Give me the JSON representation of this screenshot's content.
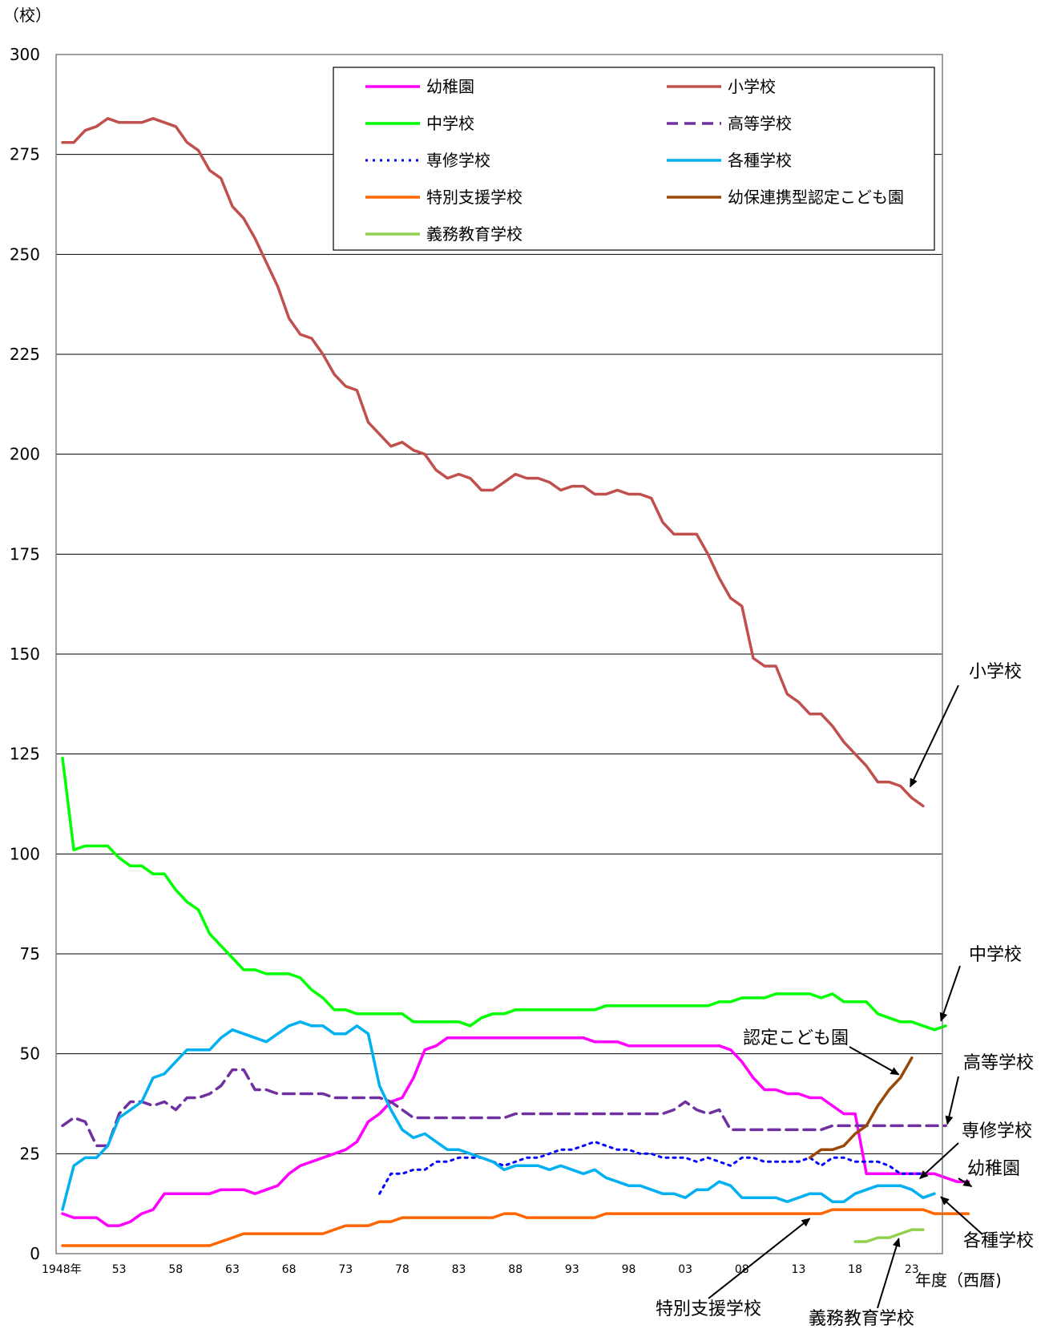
{
  "chart_data": {
    "type": "line",
    "y_unit_label": "（校）",
    "x_axis_label": "年度（西暦)",
    "ylim": [
      0,
      300
    ],
    "y_ticks": [
      0,
      25,
      50,
      75,
      100,
      125,
      150,
      175,
      200,
      225,
      250,
      275,
      300
    ],
    "x_range": [
      1948,
      2024
    ],
    "x_ticks": [
      {
        "year": 1948,
        "label": "1948年"
      },
      {
        "year": 1953,
        "label": "53"
      },
      {
        "year": 1958,
        "label": "58"
      },
      {
        "year": 1963,
        "label": "63"
      },
      {
        "year": 1968,
        "label": "68"
      },
      {
        "year": 1973,
        "label": "73"
      },
      {
        "year": 1978,
        "label": "78"
      },
      {
        "year": 1983,
        "label": "83"
      },
      {
        "year": 1988,
        "label": "88"
      },
      {
        "year": 1993,
        "label": "93"
      },
      {
        "year": 1998,
        "label": "98"
      },
      {
        "year": 2003,
        "label": "03"
      },
      {
        "year": 2008,
        "label": "08"
      },
      {
        "year": 2013,
        "label": "13"
      },
      {
        "year": 2018,
        "label": "18"
      },
      {
        "year": 2023,
        "label": "23"
      }
    ],
    "grid": "horizontal",
    "legend_position": "top-right",
    "series": [
      {
        "name": "幼稚園",
        "color": "#ff00ff",
        "style": "solid",
        "start": 1948,
        "values": [
          10,
          9,
          9,
          9,
          7,
          7,
          8,
          10,
          11,
          15,
          15,
          15,
          15,
          15,
          16,
          16,
          16,
          15,
          16,
          17,
          20,
          22,
          23,
          24,
          25,
          26,
          28,
          33,
          35,
          38,
          39,
          44,
          51,
          52,
          54,
          54,
          54,
          54,
          54,
          54,
          54,
          54,
          54,
          54,
          54,
          54,
          54,
          53,
          53,
          53,
          52,
          52,
          52,
          52,
          52,
          52,
          52,
          52,
          52,
          51,
          48,
          44,
          41,
          41,
          40,
          40,
          39,
          39,
          37,
          35,
          35,
          20,
          20,
          20,
          20,
          20,
          20,
          20,
          19,
          18,
          18
        ]
      },
      {
        "name": "小学校",
        "color": "#c0504d",
        "style": "solid",
        "start": 1948,
        "values": [
          278,
          278,
          281,
          282,
          284,
          283,
          283,
          283,
          284,
          283,
          282,
          278,
          276,
          271,
          269,
          262,
          259,
          254,
          248,
          242,
          234,
          230,
          229,
          225,
          220,
          217,
          216,
          208,
          205,
          202,
          203,
          201,
          200,
          196,
          194,
          195,
          194,
          191,
          191,
          193,
          195,
          194,
          194,
          193,
          191,
          192,
          192,
          190,
          190,
          191,
          190,
          190,
          189,
          183,
          180,
          180,
          180,
          175,
          169,
          164,
          162,
          149,
          147,
          147,
          140,
          138,
          135,
          135,
          132,
          128,
          125,
          122,
          118,
          118,
          117,
          114,
          112
        ]
      },
      {
        "name": "中学校",
        "color": "#00ff00",
        "style": "solid",
        "start": 1948,
        "values": [
          124,
          101,
          102,
          102,
          102,
          99,
          97,
          97,
          95,
          95,
          91,
          88,
          86,
          80,
          77,
          74,
          71,
          71,
          70,
          70,
          70,
          69,
          66,
          64,
          61,
          61,
          60,
          60,
          60,
          60,
          60,
          58,
          58,
          58,
          58,
          58,
          57,
          59,
          60,
          60,
          61,
          61,
          61,
          61,
          61,
          61,
          61,
          61,
          62,
          62,
          62,
          62,
          62,
          62,
          62,
          62,
          62,
          62,
          63,
          63,
          64,
          64,
          64,
          65,
          65,
          65,
          65,
          64,
          65,
          63,
          63,
          63,
          60,
          59,
          58,
          58,
          57,
          56,
          57
        ]
      },
      {
        "name": "高等学校",
        "color": "#7030a0",
        "style": "dashed",
        "start": 1948,
        "values": [
          32,
          34,
          33,
          27,
          27,
          35,
          38,
          38,
          37,
          38,
          36,
          39,
          39,
          40,
          42,
          46,
          46,
          41,
          41,
          40,
          40,
          40,
          40,
          40,
          39,
          39,
          39,
          39,
          39,
          38,
          36,
          34,
          34,
          34,
          34,
          34,
          34,
          34,
          34,
          34,
          35,
          35,
          35,
          35,
          35,
          35,
          35,
          35,
          35,
          35,
          35,
          35,
          35,
          35,
          36,
          38,
          36,
          35,
          36,
          31,
          31,
          31,
          31,
          31,
          31,
          31,
          31,
          31,
          32,
          32,
          32,
          32,
          32,
          32,
          32,
          32,
          32,
          32,
          32
        ]
      },
      {
        "name": "専修学校",
        "color": "#0000ff",
        "style": "dotted",
        "start": 1976,
        "values": [
          15,
          20,
          20,
          21,
          21,
          23,
          23,
          24,
          24,
          24,
          23,
          22,
          23,
          24,
          24,
          25,
          26,
          26,
          27,
          28,
          27,
          26,
          26,
          25,
          25,
          24,
          24,
          24,
          23,
          24,
          23,
          22,
          24,
          24,
          23,
          23,
          23,
          23,
          24,
          22,
          24,
          24,
          23,
          23,
          23,
          22,
          20,
          20,
          20
        ]
      },
      {
        "name": "各種学校",
        "color": "#00b0f0",
        "style": "solid",
        "start": 1948,
        "values": [
          11,
          22,
          24,
          24,
          27,
          34,
          36,
          38,
          44,
          45,
          48,
          51,
          51,
          51,
          54,
          56,
          55,
          54,
          53,
          55,
          57,
          58,
          57,
          57,
          55,
          55,
          57,
          55,
          42,
          36,
          31,
          29,
          30,
          28,
          26,
          26,
          25,
          24,
          23,
          21,
          22,
          22,
          22,
          21,
          22,
          21,
          20,
          21,
          19,
          18,
          17,
          17,
          16,
          15,
          15,
          14,
          16,
          16,
          18,
          17,
          14,
          14,
          14,
          14,
          13,
          14,
          15,
          15,
          13,
          13,
          15,
          16,
          17,
          17,
          17,
          16,
          14,
          15
        ]
      },
      {
        "name": "特別支援学校",
        "color": "#ff6600",
        "style": "solid",
        "start": 1948,
        "values": [
          2,
          2,
          2,
          2,
          2,
          2,
          2,
          2,
          2,
          2,
          2,
          2,
          2,
          2,
          3,
          4,
          5,
          5,
          5,
          5,
          5,
          5,
          5,
          5,
          6,
          7,
          7,
          7,
          8,
          8,
          9,
          9,
          9,
          9,
          9,
          9,
          9,
          9,
          9,
          10,
          10,
          9,
          9,
          9,
          9,
          9,
          9,
          9,
          10,
          10,
          10,
          10,
          10,
          10,
          10,
          10,
          10,
          10,
          10,
          10,
          10,
          10,
          10,
          10,
          10,
          10,
          10,
          10,
          11,
          11,
          11,
          11,
          11,
          11,
          11,
          11,
          11,
          10,
          10,
          10,
          10
        ]
      },
      {
        "name": "幼保連携型認定こども園",
        "color": "#984807",
        "style": "solid",
        "start": 2014,
        "values": [
          24,
          26,
          26,
          27,
          30,
          32,
          37,
          41,
          44,
          49
        ]
      },
      {
        "name": "義務教育学校",
        "color": "#92d050",
        "style": "solid",
        "start": 2018,
        "values": [
          3,
          3,
          4,
          4,
          5,
          6,
          6
        ]
      }
    ],
    "annotations": [
      {
        "text": "小学校",
        "series": "小学校"
      },
      {
        "text": "中学校",
        "series": "中学校"
      },
      {
        "text": "認定こども園",
        "series": "幼保連携型認定こども園"
      },
      {
        "text": "高等学校",
        "series": "高等学校"
      },
      {
        "text": "専修学校",
        "series": "専修学校"
      },
      {
        "text": "幼稚園",
        "series": "幼稚園"
      },
      {
        "text": "各種学校",
        "series": "各種学校"
      },
      {
        "text": "特別支援学校",
        "series": "特別支援学校"
      },
      {
        "text": "義務教育学校",
        "series": "義務教育学校"
      }
    ]
  }
}
